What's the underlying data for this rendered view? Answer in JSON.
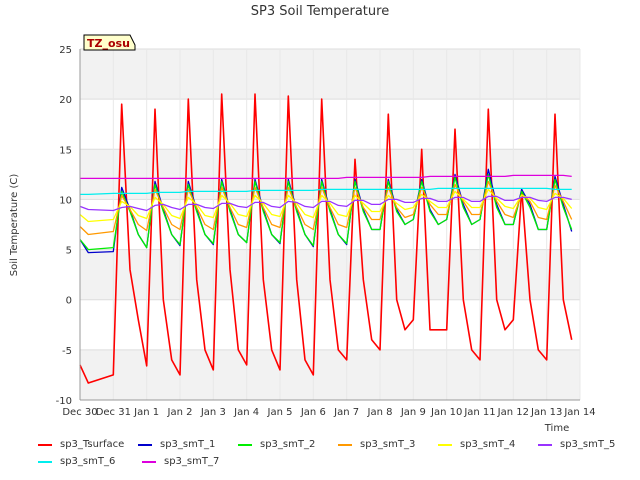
{
  "chart_data": {
    "type": "line",
    "title": "SP3 Soil Temperature",
    "xlabel": "Time",
    "ylabel": "Soil Temperature (C)",
    "xlim": [
      "Dec 30",
      "Jan 14"
    ],
    "ylim": [
      -10,
      25
    ],
    "x_ticks": [
      "Dec 30",
      "Dec 31",
      "Jan 1",
      "Jan 2",
      "Jan 3",
      "Jan 4",
      "Jan 5",
      "Jan 6",
      "Jan 7",
      "Jan 8",
      "Jan 9",
      "Jan 10",
      "Jan 11",
      "Jan 12",
      "Jan 13",
      "Jan 14"
    ],
    "y_ticks": [
      -10,
      -5,
      0,
      5,
      10,
      15,
      20,
      25
    ],
    "grid": true,
    "legend_position": "bottom",
    "annotation": "TZ_osu",
    "x": [
      "Dec 30",
      "Dec 30",
      "Dec 31",
      "Dec 31",
      "Dec 31",
      "Dec 31",
      "Jan 1",
      "Jan 1",
      "Jan 1",
      "Jan 1",
      "Jan 2",
      "Jan 2",
      "Jan 2",
      "Jan 2",
      "Jan 3",
      "Jan 3",
      "Jan 3",
      "Jan 3",
      "Jan 4",
      "Jan 4",
      "Jan 4",
      "Jan 4",
      "Jan 5",
      "Jan 5",
      "Jan 5",
      "Jan 5",
      "Jan 6",
      "Jan 6",
      "Jan 6",
      "Jan 6",
      "Jan 7",
      "Jan 7",
      "Jan 7",
      "Jan 7",
      "Jan 8",
      "Jan 8",
      "Jan 8",
      "Jan 8",
      "Jan 9",
      "Jan 9",
      "Jan 9",
      "Jan 9",
      "Jan 10",
      "Jan 10",
      "Jan 10",
      "Jan 10",
      "Jan 11",
      "Jan 11",
      "Jan 11",
      "Jan 11",
      "Jan 12",
      "Jan 12",
      "Jan 12",
      "Jan 12",
      "Jan 13",
      "Jan 13",
      "Jan 13",
      "Jan 13"
    ],
    "x_offsets_unused": null,
    "series": [
      {
        "name": "sp3_Tsurface",
        "color": "#ff0000",
        "values": [
          -6.5,
          -8.3,
          -7.5,
          19.5,
          3,
          -2,
          -6.6,
          19,
          0,
          -6,
          -7.5,
          20,
          2,
          -5,
          -7,
          20.5,
          3,
          -5,
          -6.5,
          20.5,
          2,
          -5,
          -7,
          20.3,
          2,
          -6,
          -7.5,
          20,
          2,
          -5,
          -6,
          14,
          2,
          -4,
          -5,
          18.5,
          0,
          -3,
          -2,
          15,
          -3,
          -3,
          -3,
          17,
          0,
          -5,
          -6,
          19,
          0,
          -3,
          -2,
          11,
          0,
          -5,
          -6,
          18.5,
          0,
          -4
        ]
      },
      {
        "name": "sp3_smT_1",
        "color": "#0000cc",
        "values": [
          6,
          4.7,
          4.8,
          11.2,
          9,
          6.5,
          5.2,
          11.8,
          9,
          6.5,
          5.4,
          11.8,
          9,
          6.5,
          5.5,
          12,
          9,
          6.5,
          5.7,
          12,
          9,
          6.5,
          5.6,
          12,
          9,
          6.5,
          5.3,
          12,
          9,
          6.5,
          5.5,
          12,
          9,
          7,
          7,
          12,
          9,
          7.5,
          8,
          12,
          9,
          7.5,
          8,
          12.5,
          9.5,
          7.5,
          8,
          13,
          9.5,
          7.5,
          7.5,
          11,
          9.5,
          7,
          7,
          12.3,
          9.5,
          6.8
        ]
      },
      {
        "name": "sp3_smT_2",
        "color": "#00ee00",
        "values": [
          6,
          5,
          5.2,
          10.8,
          8.8,
          6.5,
          5.2,
          11.5,
          8.8,
          6.5,
          5.5,
          11.5,
          8.8,
          6.5,
          5.6,
          11.8,
          8.8,
          6.5,
          5.7,
          11.8,
          8.8,
          6.5,
          5.7,
          11.8,
          8.8,
          6.5,
          5.4,
          11.8,
          8.8,
          6.5,
          5.6,
          11.8,
          8.8,
          7,
          7,
          11.8,
          8.8,
          7.5,
          8,
          11.8,
          8.8,
          7.5,
          8,
          12.2,
          9.2,
          7.5,
          8,
          12.5,
          9.2,
          7.5,
          7.5,
          10.8,
          9.2,
          7,
          7,
          12,
          9.2,
          7
        ]
      },
      {
        "name": "sp3_smT_3",
        "color": "#ff9900",
        "values": [
          7.3,
          6.5,
          6.8,
          10.4,
          9,
          7.5,
          6.9,
          11,
          9.2,
          7.5,
          7,
          11,
          9.2,
          7.5,
          7,
          11.2,
          9.2,
          7.5,
          7.2,
          11.2,
          9.2,
          7.5,
          7.2,
          11.2,
          9.2,
          7.5,
          7,
          11.2,
          9.2,
          7.5,
          7.2,
          11.2,
          9.2,
          8,
          8,
          11.2,
          9.2,
          8.2,
          8.5,
          11.2,
          9.5,
          8.5,
          8.5,
          11.5,
          9.8,
          8.5,
          8.5,
          11.8,
          9.8,
          8.5,
          8.2,
          10.5,
          9.8,
          8.2,
          8,
          11.4,
          9.8,
          8
        ]
      },
      {
        "name": "sp3_smT_4",
        "color": "#ffff00",
        "values": [
          8.5,
          7.8,
          8,
          9.8,
          9.3,
          8.4,
          8.1,
          10.2,
          9.5,
          8.4,
          8.1,
          10.2,
          9.5,
          8.4,
          8.2,
          10.4,
          9.6,
          8.5,
          8.3,
          10.4,
          9.6,
          8.5,
          8.3,
          10.4,
          9.6,
          8.5,
          8.2,
          10.4,
          9.6,
          8.5,
          8.3,
          10.4,
          9.6,
          8.8,
          8.8,
          10.4,
          9.6,
          9,
          9.2,
          10.5,
          9.8,
          9.2,
          9.2,
          10.8,
          10,
          9.2,
          9.2,
          11,
          10.1,
          9.3,
          9.1,
          10.4,
          10.1,
          9.2,
          9,
          10.6,
          10.1,
          9.1
        ]
      },
      {
        "name": "sp3_smT_5",
        "color": "#9933ff",
        "values": [
          9.3,
          9,
          8.9,
          9.2,
          9.3,
          9.1,
          8.9,
          9.4,
          9.5,
          9.2,
          9,
          9.5,
          9.5,
          9.2,
          9.1,
          9.6,
          9.6,
          9.3,
          9.2,
          9.7,
          9.7,
          9.3,
          9.2,
          9.8,
          9.7,
          9.3,
          9.2,
          9.8,
          9.8,
          9.4,
          9.3,
          9.9,
          9.9,
          9.5,
          9.5,
          10,
          10,
          9.7,
          9.7,
          10.1,
          10.1,
          9.8,
          9.8,
          10.2,
          10.2,
          9.8,
          9.8,
          10.3,
          10.3,
          9.9,
          9.9,
          10.2,
          10.2,
          9.9,
          9.8,
          10.2,
          10.2,
          10
        ]
      },
      {
        "name": "sp3_smT_6",
        "color": "#00eeee",
        "values": [
          10.5,
          10.5,
          10.6,
          10.6,
          10.6,
          10.6,
          10.6,
          10.7,
          10.7,
          10.7,
          10.7,
          10.8,
          10.8,
          10.8,
          10.8,
          10.8,
          10.8,
          10.8,
          10.8,
          10.9,
          10.9,
          10.9,
          10.9,
          10.9,
          10.9,
          10.9,
          10.9,
          11,
          11,
          11,
          11,
          11,
          11,
          11,
          11,
          11,
          11,
          11,
          11,
          11,
          11,
          11.1,
          11.1,
          11.1,
          11.1,
          11.1,
          11.1,
          11.1,
          11.1,
          11.1,
          11.1,
          11.1,
          11.1,
          11.1,
          11.1,
          11,
          11,
          11
        ]
      },
      {
        "name": "sp3_smT_7",
        "color": "#dd00dd",
        "values": [
          12.1,
          12.1,
          12.1,
          12.1,
          12.1,
          12.1,
          12.1,
          12.1,
          12.1,
          12.1,
          12.1,
          12.1,
          12.1,
          12.1,
          12.1,
          12.1,
          12.1,
          12.1,
          12.1,
          12.1,
          12.1,
          12.1,
          12.1,
          12.1,
          12.1,
          12.1,
          12.1,
          12.1,
          12.1,
          12.1,
          12.2,
          12.2,
          12.2,
          12.2,
          12.2,
          12.2,
          12.2,
          12.2,
          12.2,
          12.2,
          12.3,
          12.3,
          12.3,
          12.3,
          12.3,
          12.3,
          12.3,
          12.3,
          12.3,
          12.3,
          12.4,
          12.4,
          12.4,
          12.4,
          12.4,
          12.4,
          12.4,
          12.3
        ]
      }
    ]
  }
}
